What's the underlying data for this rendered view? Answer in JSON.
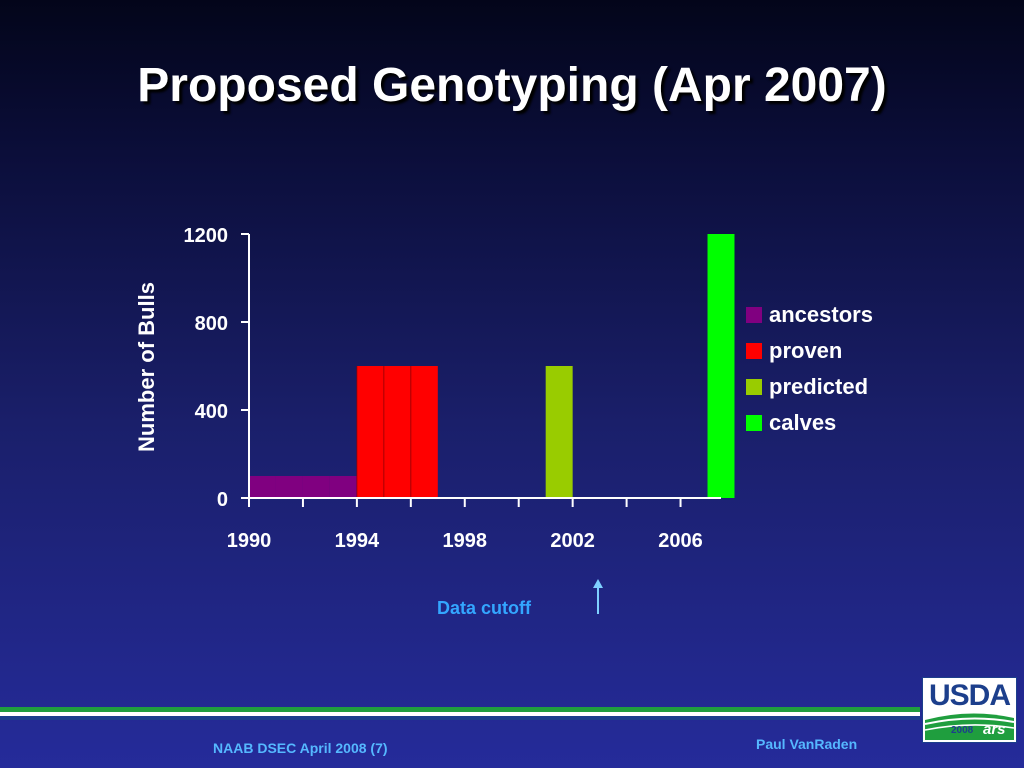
{
  "slide": {
    "title": "Proposed Genotyping (Apr 2007)",
    "annotation": "Data cutoff",
    "footer_left": "NAAB DSEC April 2008 (7)",
    "footer_right": "Paul VanRaden",
    "logo": {
      "text": "USDA",
      "year": "2008",
      "agency": "ars"
    }
  },
  "colors": {
    "ancestors": "#800080",
    "proven": "#ff0000",
    "predicted": "#99cc00",
    "calves": "#00ff00",
    "annotation": "#33a6ff",
    "stripe_green": "#1f9e3e",
    "stripe_white": "#ffffff",
    "stripe_blue": "#1c3f8c"
  },
  "chart_data": {
    "type": "bar",
    "title": "",
    "xlabel": "",
    "ylabel": "Number of Bulls",
    "xlim": [
      1990,
      2007.5
    ],
    "ylim": [
      0,
      1200
    ],
    "x_ticks": [
      1990,
      1994,
      1998,
      2002,
      2006
    ],
    "y_ticks": [
      0,
      400,
      800,
      1200
    ],
    "grid": false,
    "legend_position": "right",
    "bar_width_years": 1,
    "series": [
      {
        "name": "ancestors",
        "color": "#800080",
        "points": [
          {
            "x": 1990,
            "y": 100
          },
          {
            "x": 1991,
            "y": 100
          },
          {
            "x": 1992,
            "y": 100
          },
          {
            "x": 1993,
            "y": 100
          }
        ]
      },
      {
        "name": "proven",
        "color": "#ff0000",
        "points": [
          {
            "x": 1994,
            "y": 600
          },
          {
            "x": 1995,
            "y": 600
          },
          {
            "x": 1996,
            "y": 600
          }
        ]
      },
      {
        "name": "predicted",
        "color": "#99cc00",
        "points": [
          {
            "x": 2001,
            "y": 600
          }
        ]
      },
      {
        "name": "calves",
        "color": "#00ff00",
        "points": [
          {
            "x": 2007,
            "y": 1200
          }
        ]
      }
    ],
    "data_cutoff_x": 2003.5
  }
}
